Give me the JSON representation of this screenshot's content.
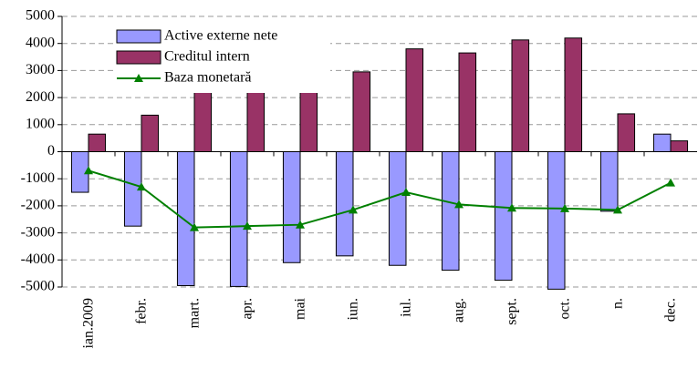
{
  "chart_data": {
    "type": "bar_line",
    "categories": [
      "ian.2009",
      "febr.",
      "mart.",
      "apr.",
      "mai",
      "iun.",
      "iul.",
      "aug.",
      "sept.",
      "oct.",
      "n.",
      "dec."
    ],
    "series": [
      {
        "name": "Active externe nete",
        "type": "bar",
        "color": "#9999ff",
        "values": [
          -1500,
          -2750,
          -4950,
          -4980,
          -4100,
          -3850,
          -4200,
          -4380,
          -4750,
          -5080,
          -2200,
          650
        ]
      },
      {
        "name": "Creditul intern",
        "type": "bar",
        "color": "#993366",
        "values": [
          650,
          1350,
          2700,
          2900,
          2500,
          2950,
          3800,
          3650,
          4130,
          4200,
          1400,
          400
        ]
      },
      {
        "name": "Baza monetară",
        "type": "line",
        "color": "#008000",
        "values": [
          -700,
          -1300,
          -2800,
          -2750,
          -2700,
          -2150,
          -1500,
          -1950,
          -2080,
          -2100,
          -2150,
          -1150
        ]
      }
    ],
    "ylim": [
      -5000,
      5000
    ],
    "yticks": [
      -5000,
      -4000,
      -3000,
      -2000,
      -1000,
      0,
      1000,
      2000,
      3000,
      4000,
      5000
    ],
    "grid": true,
    "legend": "top-left"
  }
}
